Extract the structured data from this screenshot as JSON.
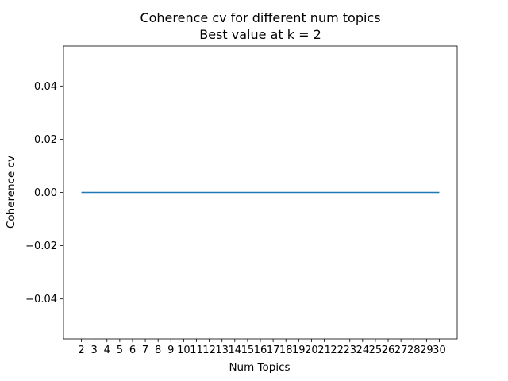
{
  "chart_data": {
    "type": "line",
    "title": "Coherence cv for different num topics",
    "subtitle": "Best value at k = 2",
    "xlabel": "Num Topics",
    "ylabel": "Coherence cv",
    "x": [
      2,
      3,
      4,
      5,
      6,
      7,
      8,
      9,
      10,
      11,
      12,
      13,
      14,
      15,
      16,
      17,
      18,
      19,
      20,
      21,
      22,
      23,
      24,
      25,
      26,
      27,
      28,
      29,
      30
    ],
    "x_tick_labels": [
      "2",
      "3",
      "4",
      "5",
      "6",
      "7",
      "8",
      "9",
      "10",
      "11",
      "12",
      "13",
      "14",
      "15",
      "16",
      "17",
      "18",
      "19",
      "20",
      "21",
      "22",
      "23",
      "24",
      "25",
      "26",
      "27",
      "28",
      "29",
      "30"
    ],
    "series": [
      {
        "color": "#1f77b4",
        "values": [
          0,
          0,
          0,
          0,
          0,
          0,
          0,
          0,
          0,
          0,
          0,
          0,
          0,
          0,
          0,
          0,
          0,
          0,
          0,
          0,
          0,
          0,
          0,
          0,
          0,
          0,
          0,
          0,
          0
        ]
      }
    ],
    "xlim": [
      0.6,
      31.4
    ],
    "ylim": [
      -0.055,
      0.055
    ],
    "y_ticks": [
      -0.04,
      -0.02,
      0.0,
      0.02,
      0.04
    ],
    "y_tick_labels": [
      "−0.04",
      "−0.02",
      "0.00",
      "0.02",
      "0.04"
    ],
    "grid": false,
    "legend": "none"
  }
}
